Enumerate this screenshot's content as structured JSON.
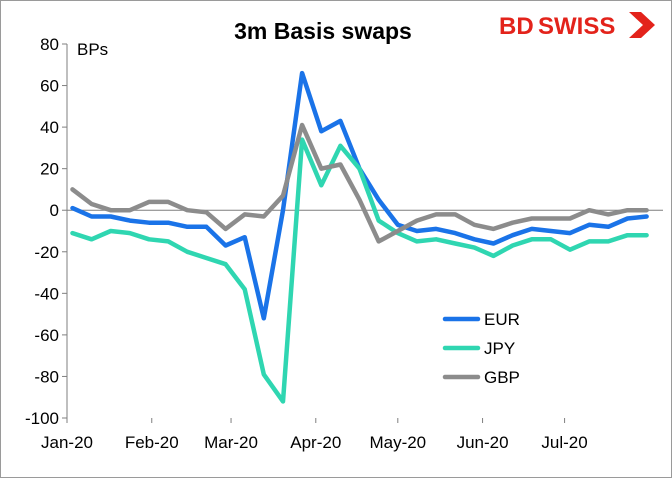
{
  "brand": {
    "logo_left": "BD",
    "logo_right": "SWISS",
    "logo_color": "#e3231b"
  },
  "chart_data": {
    "type": "line",
    "title": "3m Basis swaps",
    "unit_label": "BPs",
    "xlabel": "",
    "ylabel": "",
    "ylim": [
      -100,
      80
    ],
    "yticks": [
      80,
      60,
      40,
      20,
      0,
      -20,
      -40,
      -60,
      -80,
      -100
    ],
    "xticks": [
      "Jan-20",
      "Feb-20",
      "Mar-20",
      "Apr-20",
      "May-20",
      "Jun-20",
      "Jul-20"
    ],
    "x": [
      "2020-01-03",
      "2020-01-10",
      "2020-01-17",
      "2020-01-24",
      "2020-01-31",
      "2020-02-07",
      "2020-02-14",
      "2020-02-21",
      "2020-02-28",
      "2020-03-06",
      "2020-03-13",
      "2020-03-20",
      "2020-03-27",
      "2020-04-03",
      "2020-04-10",
      "2020-04-17",
      "2020-04-24",
      "2020-05-01",
      "2020-05-08",
      "2020-05-15",
      "2020-05-22",
      "2020-05-29",
      "2020-06-05",
      "2020-06-12",
      "2020-06-19",
      "2020-06-26",
      "2020-07-03",
      "2020-07-10",
      "2020-07-17",
      "2020-07-24",
      "2020-07-31"
    ],
    "grid": false,
    "legend_position": "bottom-right",
    "series": [
      {
        "name": "EUR",
        "color": "#1a73e8",
        "values": [
          1,
          -3,
          -3,
          -5,
          -6,
          -6,
          -8,
          -8,
          -17,
          -13,
          -52,
          0,
          66,
          38,
          43,
          20,
          5,
          -7,
          -10,
          -9,
          -11,
          -14,
          -16,
          -12,
          -9,
          -10,
          -11,
          -7,
          -8,
          -4,
          -3
        ]
      },
      {
        "name": "JPY",
        "color": "#2fd6b1",
        "values": [
          -11,
          -14,
          -10,
          -11,
          -14,
          -15,
          -20,
          -23,
          -26,
          -38,
          -79,
          -92,
          34,
          12,
          31,
          20,
          -5,
          -11,
          -15,
          -14,
          -16,
          -18,
          -22,
          -17,
          -14,
          -14,
          -19,
          -15,
          -15,
          -12,
          -12
        ]
      },
      {
        "name": "GBP",
        "color": "#8c8c8c",
        "values": [
          10,
          3,
          0,
          0,
          4,
          4,
          0,
          -1,
          -9,
          -2,
          -3,
          7,
          41,
          20,
          22,
          5,
          -15,
          -10,
          -5,
          -2,
          -2,
          -7,
          -9,
          -6,
          -4,
          -4,
          -4,
          0,
          -2,
          0,
          0
        ]
      }
    ]
  }
}
